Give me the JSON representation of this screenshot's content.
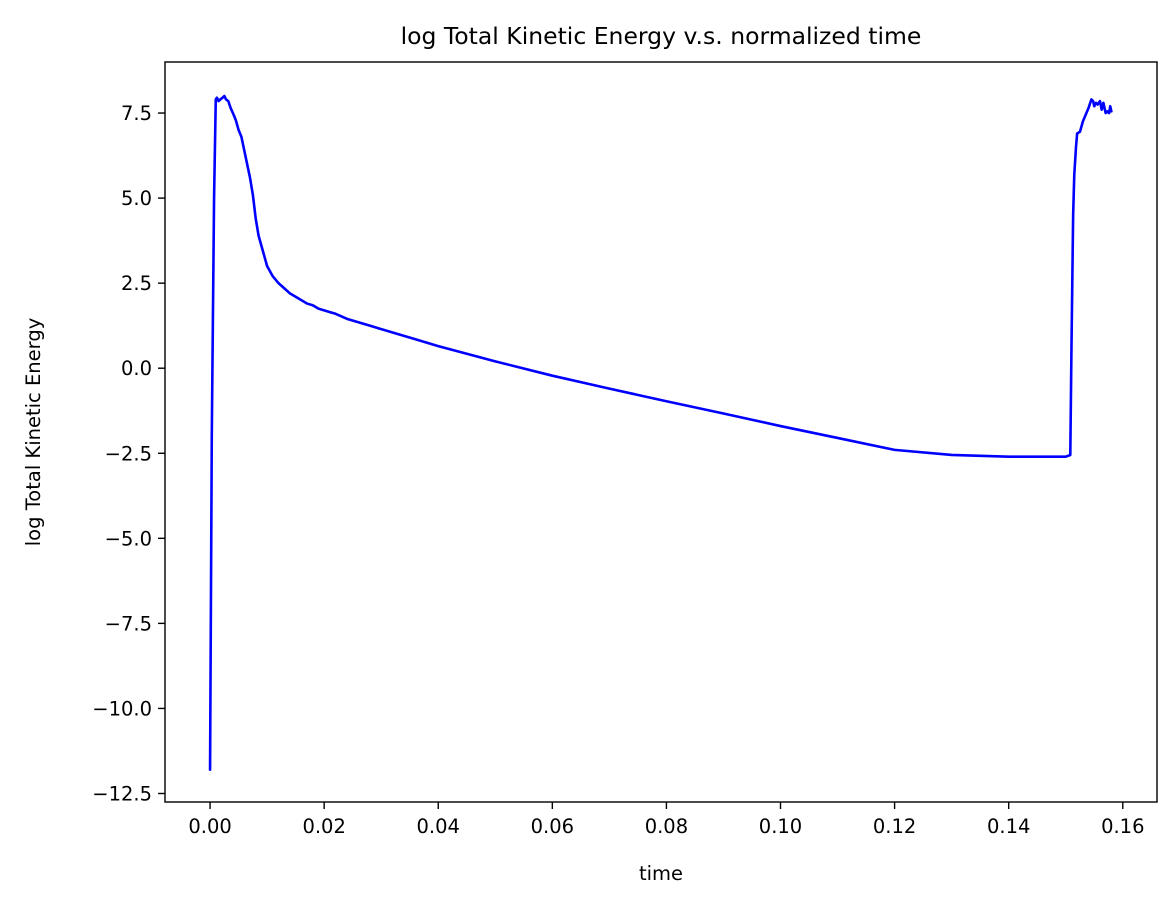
{
  "chart_data": {
    "type": "line",
    "title": "log Total Kinetic Energy v.s. normalized time",
    "xlabel": "time",
    "ylabel": "log Total Kinetic Energy",
    "xlim": [
      -0.0079,
      0.166
    ],
    "ylim": [
      -12.75,
      9.0
    ],
    "xticks": [
      {
        "value": 0.0,
        "label": "0.00"
      },
      {
        "value": 0.02,
        "label": "0.02"
      },
      {
        "value": 0.04,
        "label": "0.04"
      },
      {
        "value": 0.06,
        "label": "0.06"
      },
      {
        "value": 0.08,
        "label": "0.08"
      },
      {
        "value": 0.1,
        "label": "0.10"
      },
      {
        "value": 0.12,
        "label": "0.12"
      },
      {
        "value": 0.14,
        "label": "0.14"
      },
      {
        "value": 0.16,
        "label": "0.16"
      }
    ],
    "yticks": [
      {
        "value": 7.5,
        "label": "7.5"
      },
      {
        "value": 5.0,
        "label": "5.0"
      },
      {
        "value": 2.5,
        "label": "2.5"
      },
      {
        "value": 0.0,
        "label": "0.0"
      },
      {
        "value": -2.5,
        "label": "−2.5"
      },
      {
        "value": -5.0,
        "label": "−5.0"
      },
      {
        "value": -7.5,
        "label": "−7.5"
      },
      {
        "value": -10.0,
        "label": "−10.0"
      },
      {
        "value": -12.5,
        "label": "−12.5"
      }
    ],
    "grid": false,
    "series": [
      {
        "color": "#0000ff",
        "x": [
          0.0,
          0.0003,
          0.0007,
          0.001,
          0.0012,
          0.0015,
          0.0018,
          0.0022,
          0.0025,
          0.0028,
          0.0032,
          0.0036,
          0.004,
          0.0045,
          0.005,
          0.0055,
          0.006,
          0.0065,
          0.007,
          0.0075,
          0.008,
          0.0085,
          0.009,
          0.0095,
          0.01,
          0.011,
          0.012,
          0.013,
          0.014,
          0.015,
          0.016,
          0.017,
          0.018,
          0.019,
          0.02,
          0.021,
          0.022,
          0.024,
          0.026,
          0.028,
          0.03,
          0.032,
          0.034,
          0.036,
          0.04,
          0.05,
          0.06,
          0.07,
          0.08,
          0.09,
          0.1,
          0.11,
          0.12,
          0.13,
          0.14,
          0.15,
          0.1508,
          0.151,
          0.1513,
          0.1515,
          0.1518,
          0.152,
          0.1525,
          0.153,
          0.1535,
          0.154,
          0.1545,
          0.1548,
          0.155,
          0.1553,
          0.1556,
          0.156,
          0.1563,
          0.1566,
          0.157,
          0.1573,
          0.1576,
          0.1578,
          0.158
        ],
        "y": [
          -11.8,
          -2.0,
          5.0,
          7.9,
          7.95,
          7.85,
          7.9,
          7.95,
          8.0,
          7.9,
          7.85,
          7.65,
          7.5,
          7.3,
          7.0,
          6.8,
          6.4,
          6.0,
          5.6,
          5.1,
          4.4,
          3.9,
          3.6,
          3.3,
          3.0,
          2.7,
          2.5,
          2.35,
          2.2,
          2.1,
          2.0,
          1.9,
          1.85,
          1.75,
          1.7,
          1.65,
          1.6,
          1.45,
          1.35,
          1.25,
          1.15,
          1.05,
          0.95,
          0.85,
          0.65,
          0.2,
          -0.22,
          -0.6,
          -0.97,
          -1.33,
          -1.7,
          -2.05,
          -2.4,
          -2.55,
          -2.6,
          -2.6,
          -2.55,
          0.5,
          4.5,
          5.7,
          6.5,
          6.9,
          6.95,
          7.25,
          7.45,
          7.65,
          7.9,
          7.85,
          7.7,
          7.8,
          7.75,
          7.85,
          7.6,
          7.8,
          7.5,
          7.55,
          7.5,
          7.7,
          7.55
        ]
      }
    ]
  }
}
